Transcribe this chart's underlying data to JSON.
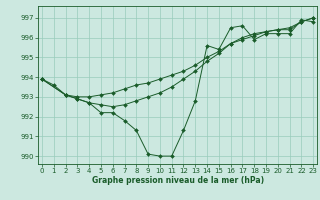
{
  "title": "Graphe pression niveau de la mer (hPa)",
  "background_color": "#cce8e0",
  "grid_color": "#99ccbb",
  "line_color": "#1a5c2a",
  "x_ticks": [
    0,
    1,
    2,
    3,
    4,
    5,
    6,
    7,
    8,
    9,
    10,
    11,
    12,
    13,
    14,
    15,
    16,
    17,
    18,
    19,
    20,
    21,
    22,
    23
  ],
  "y_ticks": [
    990,
    991,
    992,
    993,
    994,
    995,
    996,
    997
  ],
  "ylim": [
    989.6,
    997.6
  ],
  "xlim": [
    -0.3,
    23.3
  ],
  "line1_x": [
    0,
    1,
    2,
    3,
    4,
    5,
    6,
    7,
    8,
    9,
    10,
    11,
    12,
    13,
    14,
    15,
    16,
    17,
    18,
    19,
    20,
    21,
    22,
    23
  ],
  "line1_y": [
    993.9,
    993.6,
    993.1,
    992.9,
    992.7,
    992.2,
    992.2,
    991.8,
    991.3,
    990.1,
    990.0,
    990.0,
    991.3,
    992.8,
    995.6,
    995.4,
    996.5,
    996.6,
    995.9,
    996.2,
    996.2,
    996.2,
    996.9,
    996.8
  ],
  "line2_x": [
    0,
    2,
    3,
    4,
    5,
    6,
    7,
    8,
    9,
    10,
    11,
    12,
    13,
    14,
    15,
    16,
    17,
    18,
    19,
    20,
    21,
    22,
    23
  ],
  "line2_y": [
    993.9,
    993.1,
    993.0,
    993.0,
    993.1,
    993.2,
    993.4,
    993.6,
    993.7,
    993.9,
    994.1,
    994.3,
    994.6,
    995.0,
    995.3,
    995.7,
    995.9,
    996.1,
    996.3,
    996.4,
    996.5,
    996.8,
    997.0
  ],
  "line3_x": [
    0,
    2,
    3,
    4,
    5,
    6,
    7,
    8,
    9,
    10,
    11,
    12,
    13,
    14,
    15,
    16,
    17,
    18,
    19,
    20,
    21,
    22,
    23
  ],
  "line3_y": [
    993.9,
    993.1,
    992.9,
    992.7,
    992.6,
    992.5,
    992.6,
    992.8,
    993.0,
    993.2,
    993.5,
    993.9,
    994.3,
    994.8,
    995.2,
    995.7,
    996.0,
    996.2,
    996.3,
    996.4,
    996.4,
    996.8,
    997.0
  ]
}
